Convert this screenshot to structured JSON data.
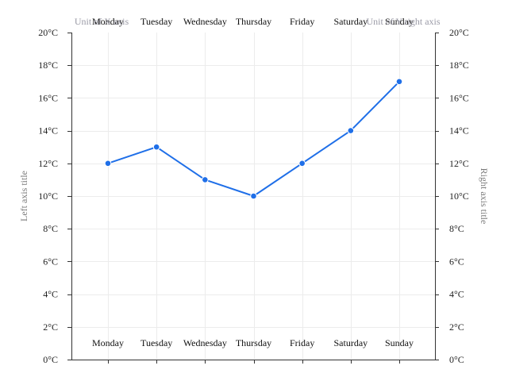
{
  "chart_data": {
    "type": "line",
    "categories": [
      "Monday",
      "Tuesday",
      "Wednesday",
      "Thursday",
      "Friday",
      "Saturday",
      "Sunday"
    ],
    "series": [
      {
        "values": [
          12,
          13,
          11,
          10,
          12,
          14,
          17
        ],
        "color": "#1f6fe8"
      }
    ],
    "y_ticks": [
      "0°C",
      "2°C",
      "4°C",
      "6°C",
      "8°C",
      "10°C",
      "12°C",
      "14°C",
      "16°C",
      "18°C",
      "20°C"
    ],
    "ylim": [
      0,
      20
    ],
    "left_axis_title": "Left axis title",
    "right_axis_title": "Right axis title",
    "top_left_unit": "Unit of X axis",
    "top_right_unit": "Unit of Y right axis",
    "grid": true,
    "colors": {
      "line": "#1f6fe8",
      "axis": "#333333",
      "grid": "#ececec"
    }
  }
}
